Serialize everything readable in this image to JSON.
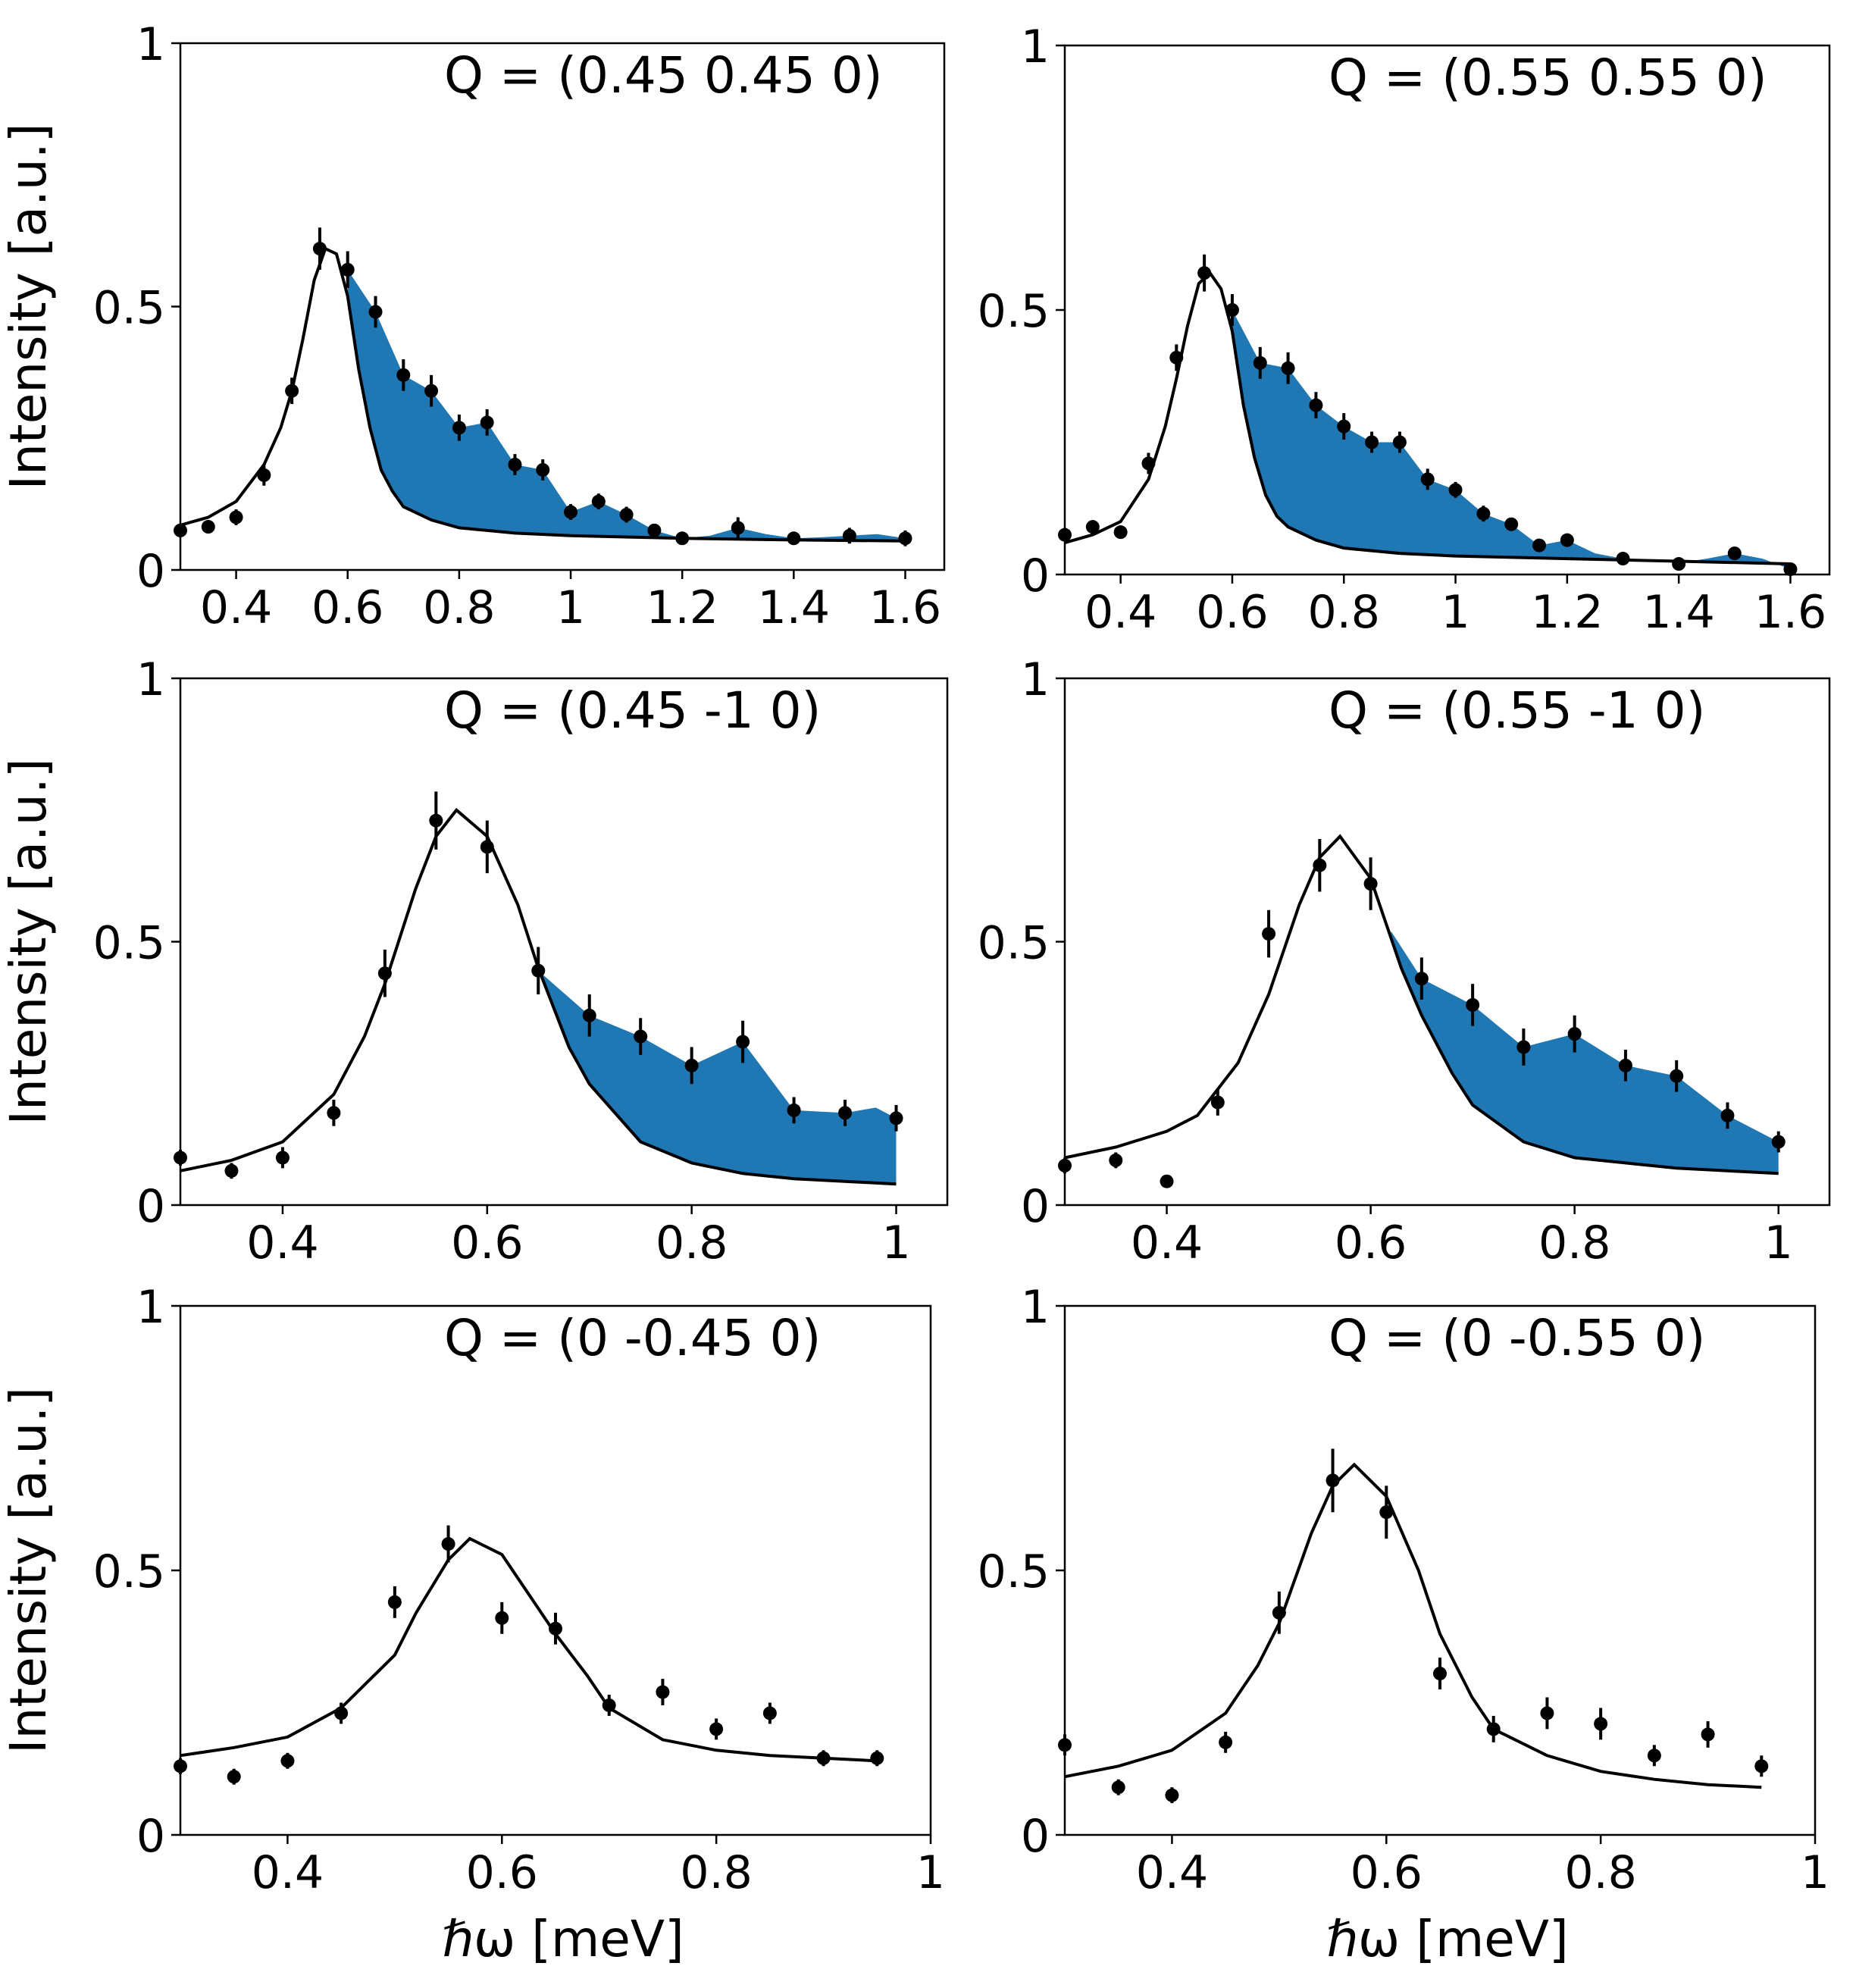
{
  "figure": {
    "accent_color": "#1f77b4"
  },
  "chart_data": [
    {
      "type": "line",
      "title": "Q = (0.45 0.45 0)",
      "xlabel": "",
      "ylabel": "Intensity [a.u.]",
      "xlim": [
        0.3,
        1.67
      ],
      "ylim": [
        0,
        1
      ],
      "xticks": [
        0.4,
        0.6,
        0.8,
        1,
        1.2,
        1.4,
        1.6
      ],
      "xtick_labels": [
        "0.4",
        "0.6",
        "0.8",
        "1",
        "1.2",
        "1.4",
        "1.6"
      ],
      "yticks": [
        0,
        0.5,
        1
      ],
      "ytick_labels": [
        "0",
        "0.5",
        "1"
      ],
      "fill_from": 0.6,
      "data": {
        "x": [
          0.3,
          0.35,
          0.4,
          0.45,
          0.5,
          0.55,
          0.6,
          0.65,
          0.7,
          0.75,
          0.8,
          0.85,
          0.9,
          0.95,
          1.0,
          1.05,
          1.1,
          1.15,
          1.2,
          1.3,
          1.4,
          1.5,
          1.6
        ],
        "y": [
          0.075,
          0.082,
          0.1,
          0.18,
          0.34,
          0.61,
          0.57,
          0.49,
          0.37,
          0.34,
          0.27,
          0.28,
          0.2,
          0.19,
          0.11,
          0.13,
          0.105,
          0.075,
          0.06,
          0.08,
          0.06,
          0.065,
          0.06
        ],
        "err": [
          0.01,
          0.01,
          0.015,
          0.02,
          0.025,
          0.04,
          0.035,
          0.03,
          0.03,
          0.03,
          0.025,
          0.025,
          0.02,
          0.02,
          0.015,
          0.015,
          0.015,
          0.01,
          0.01,
          0.02,
          0.01,
          0.015,
          0.015
        ]
      },
      "fit": {
        "x": [
          0.3,
          0.35,
          0.4,
          0.45,
          0.48,
          0.5,
          0.52,
          0.54,
          0.56,
          0.58,
          0.6,
          0.62,
          0.64,
          0.66,
          0.68,
          0.7,
          0.75,
          0.8,
          0.9,
          1.0,
          1.2,
          1.4,
          1.6
        ],
        "y": [
          0.085,
          0.1,
          0.13,
          0.2,
          0.27,
          0.34,
          0.44,
          0.55,
          0.61,
          0.6,
          0.52,
          0.38,
          0.27,
          0.19,
          0.15,
          0.12,
          0.095,
          0.08,
          0.07,
          0.065,
          0.06,
          0.057,
          0.055
        ]
      },
      "envelope": {
        "x": [
          0.6,
          0.65,
          0.7,
          0.75,
          0.8,
          0.85,
          0.9,
          0.95,
          1.0,
          1.05,
          1.1,
          1.15,
          1.2,
          1.25,
          1.3,
          1.35,
          1.4,
          1.45,
          1.5,
          1.55,
          1.6
        ],
        "y": [
          0.57,
          0.49,
          0.37,
          0.34,
          0.27,
          0.28,
          0.2,
          0.19,
          0.11,
          0.13,
          0.105,
          0.075,
          0.06,
          0.065,
          0.08,
          0.068,
          0.06,
          0.062,
          0.065,
          0.068,
          0.06
        ]
      }
    },
    {
      "type": "line",
      "title": "Q = (0.55 0.55 0)",
      "xlabel": "",
      "ylabel": "",
      "xlim": [
        0.3,
        1.67
      ],
      "ylim": [
        0,
        1
      ],
      "xticks": [
        0.4,
        0.6,
        0.8,
        1,
        1.2,
        1.4,
        1.6
      ],
      "xtick_labels": [
        "0.4",
        "0.6",
        "0.8",
        "1",
        "1.2",
        "1.4",
        "1.6"
      ],
      "yticks": [
        0,
        0.5,
        1
      ],
      "ytick_labels": [
        "0",
        "0.5",
        "1"
      ],
      "fill_from": 0.6,
      "data": {
        "x": [
          0.3,
          0.35,
          0.4,
          0.45,
          0.5,
          0.55,
          0.6,
          0.65,
          0.7,
          0.75,
          0.8,
          0.85,
          0.9,
          0.95,
          1.0,
          1.05,
          1.1,
          1.15,
          1.2,
          1.3,
          1.4,
          1.5,
          1.6
        ],
        "y": [
          0.075,
          0.09,
          0.08,
          0.21,
          0.41,
          0.57,
          0.5,
          0.4,
          0.39,
          0.32,
          0.28,
          0.25,
          0.25,
          0.18,
          0.16,
          0.115,
          0.095,
          0.055,
          0.065,
          0.03,
          0.02,
          0.04,
          0.01
        ],
        "err": [
          0.01,
          0.01,
          0.01,
          0.02,
          0.025,
          0.035,
          0.03,
          0.03,
          0.03,
          0.025,
          0.025,
          0.02,
          0.02,
          0.02,
          0.015,
          0.015,
          0.01,
          0.01,
          0.01,
          0.01,
          0.01,
          0.01,
          0.01
        ]
      },
      "fit": {
        "x": [
          0.3,
          0.35,
          0.4,
          0.45,
          0.48,
          0.5,
          0.52,
          0.54,
          0.56,
          0.58,
          0.6,
          0.62,
          0.64,
          0.66,
          0.68,
          0.7,
          0.75,
          0.8,
          0.9,
          1.0,
          1.2,
          1.4,
          1.6
        ],
        "y": [
          0.06,
          0.075,
          0.1,
          0.18,
          0.28,
          0.37,
          0.47,
          0.55,
          0.57,
          0.54,
          0.46,
          0.32,
          0.22,
          0.15,
          0.11,
          0.09,
          0.065,
          0.05,
          0.04,
          0.035,
          0.03,
          0.025,
          0.02
        ]
      },
      "envelope": {
        "x": [
          0.6,
          0.65,
          0.7,
          0.75,
          0.8,
          0.85,
          0.9,
          0.95,
          1.0,
          1.05,
          1.1,
          1.15,
          1.2,
          1.25,
          1.3,
          1.35,
          1.4,
          1.45,
          1.5,
          1.55,
          1.6
        ],
        "y": [
          0.5,
          0.4,
          0.39,
          0.32,
          0.28,
          0.25,
          0.25,
          0.18,
          0.16,
          0.115,
          0.095,
          0.055,
          0.065,
          0.04,
          0.03,
          0.025,
          0.022,
          0.03,
          0.04,
          0.03,
          0.01
        ]
      }
    },
    {
      "type": "line",
      "title": "Q = (0.45 -1 0)",
      "xlabel": "",
      "ylabel": "Intensity [a.u.]",
      "xlim": [
        0.3,
        1.05
      ],
      "ylim": [
        0,
        1
      ],
      "xticks": [
        0.4,
        0.6,
        0.8,
        1
      ],
      "xtick_labels": [
        "0.4",
        "0.6",
        "0.8",
        "1"
      ],
      "yticks": [
        0,
        0.5,
        1
      ],
      "ytick_labels": [
        "0",
        "0.5",
        "1"
      ],
      "fill_from": 0.65,
      "data": {
        "x": [
          0.3,
          0.35,
          0.4,
          0.45,
          0.5,
          0.55,
          0.6,
          0.65,
          0.7,
          0.75,
          0.8,
          0.85,
          0.9,
          0.95,
          1.0
        ],
        "y": [
          0.09,
          0.065,
          0.09,
          0.175,
          0.44,
          0.73,
          0.68,
          0.445,
          0.36,
          0.32,
          0.265,
          0.31,
          0.18,
          0.175,
          0.165
        ],
        "err": [
          0.015,
          0.015,
          0.02,
          0.025,
          0.045,
          0.055,
          0.05,
          0.045,
          0.04,
          0.035,
          0.035,
          0.04,
          0.025,
          0.025,
          0.025
        ]
      },
      "fit": {
        "x": [
          0.3,
          0.35,
          0.4,
          0.45,
          0.48,
          0.5,
          0.53,
          0.55,
          0.57,
          0.6,
          0.63,
          0.65,
          0.68,
          0.7,
          0.75,
          0.8,
          0.85,
          0.9,
          0.95,
          1.0
        ],
        "y": [
          0.065,
          0.085,
          0.12,
          0.21,
          0.32,
          0.42,
          0.6,
          0.7,
          0.75,
          0.7,
          0.57,
          0.45,
          0.3,
          0.23,
          0.12,
          0.08,
          0.06,
          0.05,
          0.045,
          0.04
        ]
      },
      "envelope": {
        "x": [
          0.65,
          0.7,
          0.75,
          0.8,
          0.85,
          0.9,
          0.95,
          0.98,
          1.0
        ],
        "y": [
          0.445,
          0.36,
          0.32,
          0.265,
          0.31,
          0.18,
          0.175,
          0.185,
          0.165
        ]
      }
    },
    {
      "type": "line",
      "title": "Q = (0.55 -1 0)",
      "xlabel": "",
      "ylabel": "",
      "xlim": [
        0.3,
        1.05
      ],
      "ylim": [
        0,
        1
      ],
      "xticks": [
        0.4,
        0.6,
        0.8,
        1
      ],
      "xtick_labels": [
        "0.4",
        "0.6",
        "0.8",
        "1"
      ],
      "yticks": [
        0,
        0.5,
        1
      ],
      "ytick_labels": [
        "0",
        "0.5",
        "1"
      ],
      "fill_from": 0.62,
      "data": {
        "x": [
          0.3,
          0.35,
          0.4,
          0.45,
          0.5,
          0.55,
          0.6,
          0.65,
          0.7,
          0.75,
          0.8,
          0.85,
          0.9,
          0.95,
          1.0
        ],
        "y": [
          0.075,
          0.085,
          0.045,
          0.195,
          0.515,
          0.645,
          0.61,
          0.43,
          0.38,
          0.3,
          0.325,
          0.265,
          0.245,
          0.17,
          0.12
        ],
        "err": [
          0.015,
          0.015,
          0.01,
          0.025,
          0.045,
          0.05,
          0.05,
          0.04,
          0.04,
          0.035,
          0.035,
          0.03,
          0.03,
          0.025,
          0.02
        ]
      },
      "fit": {
        "x": [
          0.3,
          0.35,
          0.4,
          0.43,
          0.45,
          0.47,
          0.5,
          0.53,
          0.55,
          0.57,
          0.6,
          0.63,
          0.65,
          0.68,
          0.7,
          0.75,
          0.8,
          0.85,
          0.9,
          0.95,
          1.0
        ],
        "y": [
          0.09,
          0.11,
          0.14,
          0.17,
          0.22,
          0.27,
          0.4,
          0.57,
          0.66,
          0.7,
          0.62,
          0.45,
          0.36,
          0.25,
          0.19,
          0.12,
          0.09,
          0.08,
          0.07,
          0.065,
          0.06
        ]
      },
      "envelope": {
        "x": [
          0.62,
          0.65,
          0.7,
          0.75,
          0.8,
          0.85,
          0.9,
          0.95,
          1.0
        ],
        "y": [
          0.52,
          0.43,
          0.38,
          0.3,
          0.325,
          0.265,
          0.245,
          0.17,
          0.12
        ]
      }
    },
    {
      "type": "line",
      "title": "Q = (0 -0.45 0)",
      "xlabel": "ℏω [meV]",
      "ylabel": "Intensity [a.u.]",
      "xlim": [
        0.3,
        1.0
      ],
      "ylim": [
        0,
        1
      ],
      "xticks": [
        0.4,
        0.6,
        0.8,
        1
      ],
      "xtick_labels": [
        "0.4",
        "0.6",
        "0.8",
        "1"
      ],
      "yticks": [
        0,
        0.5,
        1
      ],
      "ytick_labels": [
        "0",
        "0.5",
        "1"
      ],
      "fill_from": null,
      "data": {
        "x": [
          0.3,
          0.35,
          0.4,
          0.45,
          0.5,
          0.55,
          0.6,
          0.65,
          0.7,
          0.75,
          0.8,
          0.85,
          0.9,
          0.95
        ],
        "y": [
          0.13,
          0.11,
          0.14,
          0.23,
          0.44,
          0.55,
          0.41,
          0.39,
          0.245,
          0.27,
          0.2,
          0.23,
          0.145,
          0.145
        ],
        "err": [
          0.015,
          0.015,
          0.015,
          0.02,
          0.03,
          0.035,
          0.03,
          0.03,
          0.02,
          0.025,
          0.02,
          0.02,
          0.015,
          0.015
        ]
      },
      "fit": {
        "x": [
          0.3,
          0.35,
          0.4,
          0.45,
          0.48,
          0.5,
          0.52,
          0.55,
          0.57,
          0.6,
          0.63,
          0.65,
          0.68,
          0.7,
          0.75,
          0.8,
          0.85,
          0.9,
          0.95
        ],
        "y": [
          0.15,
          0.165,
          0.185,
          0.24,
          0.3,
          0.34,
          0.42,
          0.52,
          0.56,
          0.53,
          0.44,
          0.38,
          0.3,
          0.24,
          0.18,
          0.16,
          0.15,
          0.145,
          0.14
        ]
      }
    },
    {
      "type": "line",
      "title": "Q = (0 -0.55 0)",
      "xlabel": "ℏω [meV]",
      "ylabel": "",
      "xlim": [
        0.3,
        1.0
      ],
      "ylim": [
        0,
        1
      ],
      "xticks": [
        0.4,
        0.6,
        0.8,
        1
      ],
      "xtick_labels": [
        "0.4",
        "0.6",
        "0.8",
        "1"
      ],
      "yticks": [
        0,
        0.5,
        1
      ],
      "ytick_labels": [
        "0",
        "0.5",
        "1"
      ],
      "fill_from": null,
      "data": {
        "x": [
          0.3,
          0.35,
          0.4,
          0.45,
          0.5,
          0.55,
          0.6,
          0.65,
          0.7,
          0.75,
          0.8,
          0.85,
          0.9,
          0.95
        ],
        "y": [
          0.17,
          0.09,
          0.075,
          0.175,
          0.42,
          0.67,
          0.61,
          0.305,
          0.2,
          0.23,
          0.21,
          0.15,
          0.19,
          0.13
        ],
        "err": [
          0.02,
          0.015,
          0.015,
          0.02,
          0.04,
          0.06,
          0.05,
          0.03,
          0.025,
          0.03,
          0.03,
          0.02,
          0.025,
          0.02
        ]
      },
      "fit": {
        "x": [
          0.3,
          0.35,
          0.4,
          0.45,
          0.48,
          0.5,
          0.53,
          0.55,
          0.57,
          0.6,
          0.63,
          0.65,
          0.68,
          0.7,
          0.75,
          0.8,
          0.85,
          0.9,
          0.95
        ],
        "y": [
          0.11,
          0.13,
          0.16,
          0.23,
          0.32,
          0.4,
          0.57,
          0.66,
          0.7,
          0.64,
          0.5,
          0.38,
          0.26,
          0.2,
          0.15,
          0.12,
          0.105,
          0.095,
          0.09
        ]
      }
    }
  ]
}
